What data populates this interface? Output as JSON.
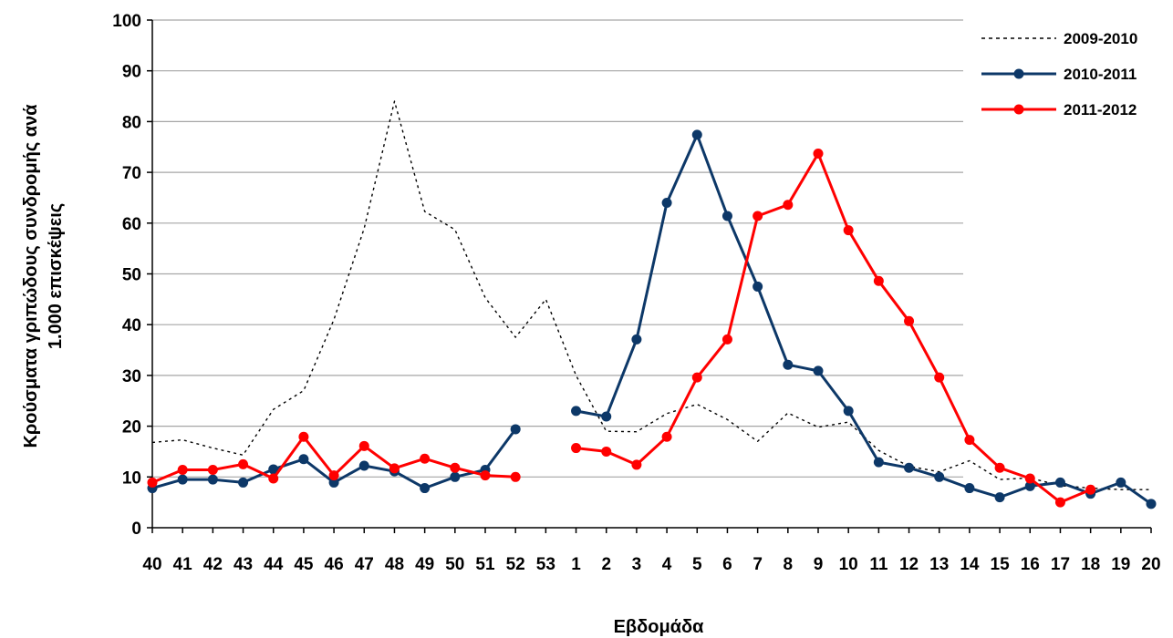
{
  "chart_data": {
    "type": "line",
    "title": "",
    "ylabel_line1": "Κρούσματα γριπώδους συνδρομής ανά",
    "ylabel_line2": "1.000 επισκέψεις",
    "xlabel": "Εβδομάδα",
    "ylim": [
      0,
      100
    ],
    "y_ticks": [
      0,
      10,
      20,
      30,
      40,
      50,
      60,
      70,
      80,
      90,
      100
    ],
    "grid": true,
    "legend_position": "top-right",
    "categories": [
      "40",
      "41",
      "42",
      "43",
      "44",
      "45",
      "46",
      "47",
      "48",
      "49",
      "50",
      "51",
      "52",
      "53",
      "1",
      "2",
      "3",
      "4",
      "5",
      "6",
      "7",
      "8",
      "9",
      "10",
      "11",
      "12",
      "13",
      "14",
      "15",
      "16",
      "17",
      "18",
      "19",
      "20"
    ],
    "series": [
      {
        "name": "2009-2010",
        "color": "#000000",
        "style": "dotted",
        "markers": false,
        "values": [
          16.8,
          17.3,
          15.7,
          14.3,
          23.3,
          27,
          41,
          59,
          84,
          62.3,
          58.7,
          45.3,
          37.5,
          45,
          30,
          19,
          18.9,
          22.5,
          24.3,
          21.3,
          17,
          22.6,
          19.8,
          20.8,
          15.2,
          12.1,
          11,
          13.2,
          9.5,
          9.8,
          8.3,
          7.8,
          7.5,
          7.5
        ]
      },
      {
        "name": "2010-2011",
        "color": "#0d3868",
        "style": "solid",
        "markers": true,
        "values": [
          7.8,
          9.5,
          9.5,
          8.9,
          11.5,
          13.5,
          8.9,
          12.2,
          11.1,
          7.8,
          10,
          11.4,
          19.4,
          null,
          23,
          21.9,
          37.1,
          64,
          77.4,
          61.4,
          47.5,
          32.1,
          30.9,
          23,
          12.9,
          11.8,
          10,
          7.8,
          6,
          8.2,
          8.9,
          6.7,
          8.9,
          4.7
        ]
      },
      {
        "name": "2011-2012",
        "color": "#ff0000",
        "style": "solid",
        "markers": true,
        "values": [
          8.9,
          11.4,
          11.4,
          12.5,
          9.7,
          17.9,
          10.3,
          16.1,
          11.7,
          13.6,
          11.8,
          10.3,
          10,
          null,
          15.7,
          15,
          12.4,
          17.9,
          29.6,
          37.1,
          61.4,
          63.6,
          73.7,
          58.6,
          48.6,
          40.7,
          29.6,
          17.3,
          11.8,
          9.7,
          5,
          7.5,
          null,
          null
        ]
      }
    ]
  }
}
